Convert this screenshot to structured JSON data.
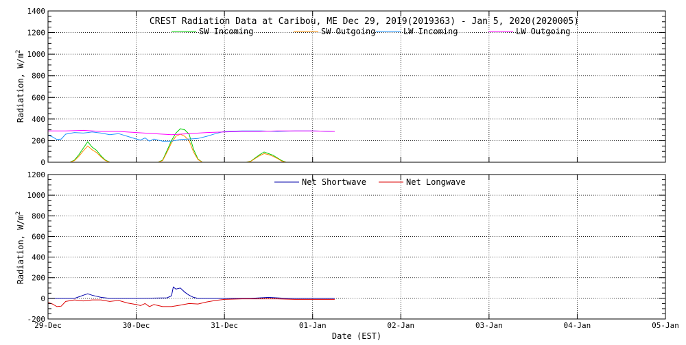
{
  "chart_data": [
    {
      "type": "line",
      "title": "CREST Radiation Data at Caribou, ME   Dec 29, 2019(2019363) - Jan  5, 2020(2020005)",
      "xlabel": "",
      "ylabel": "Radiation, W/m^2",
      "ylim": [
        0,
        1400
      ],
      "yticks": [
        0,
        200,
        400,
        600,
        800,
        1000,
        1200,
        1400
      ],
      "xlim": [
        0,
        7
      ],
      "grid": true,
      "legend": "top",
      "series": [
        {
          "name": "SW Incoming",
          "color": "#00cc00",
          "x": [
            0,
            0.25,
            0.3,
            0.35,
            0.4,
            0.45,
            0.5,
            0.55,
            0.6,
            0.65,
            0.7,
            0.75,
            1.0,
            1.25,
            1.3,
            1.35,
            1.4,
            1.45,
            1.5,
            1.55,
            1.6,
            1.65,
            1.7,
            1.75,
            2.0,
            2.25,
            2.3,
            2.35,
            2.4,
            2.45,
            2.5,
            2.55,
            2.6,
            2.65,
            2.7,
            2.75,
            3.0,
            3.25
          ],
          "y": [
            0,
            0,
            20,
            70,
            130,
            190,
            140,
            110,
            60,
            20,
            0,
            0,
            0,
            0,
            20,
            110,
            200,
            270,
            310,
            300,
            260,
            120,
            30,
            0,
            0,
            0,
            10,
            40,
            70,
            95,
            80,
            65,
            40,
            15,
            0,
            0,
            0,
            0
          ]
        },
        {
          "name": "SW Outgoing",
          "color": "#ff8c00",
          "x": [
            0,
            0.25,
            0.3,
            0.35,
            0.4,
            0.45,
            0.5,
            0.55,
            0.6,
            0.65,
            0.7,
            0.75,
            1.0,
            1.25,
            1.3,
            1.35,
            1.4,
            1.45,
            1.5,
            1.55,
            1.6,
            1.65,
            1.7,
            1.75,
            2.0,
            2.25,
            2.3,
            2.35,
            2.4,
            2.45,
            2.5,
            2.55,
            2.6,
            2.65,
            2.7,
            2.75,
            3.0,
            3.25
          ],
          "y": [
            0,
            0,
            15,
            55,
            105,
            150,
            115,
            90,
            50,
            15,
            0,
            0,
            0,
            0,
            15,
            95,
            180,
            240,
            260,
            240,
            200,
            95,
            25,
            0,
            0,
            0,
            8,
            35,
            60,
            80,
            70,
            55,
            35,
            10,
            0,
            0,
            0,
            0
          ]
        },
        {
          "name": "LW Incoming",
          "color": "#1e90ff",
          "x": [
            0,
            0.05,
            0.1,
            0.15,
            0.2,
            0.3,
            0.4,
            0.5,
            0.6,
            0.7,
            0.8,
            0.9,
            1.0,
            1.05,
            1.1,
            1.15,
            1.2,
            1.3,
            1.4,
            1.5,
            1.6,
            1.7,
            1.8,
            1.9,
            2.0,
            2.2,
            2.4,
            2.6,
            2.8,
            3.0,
            3.25
          ],
          "y": [
            250,
            235,
            210,
            215,
            260,
            275,
            270,
            280,
            270,
            255,
            265,
            240,
            215,
            205,
            225,
            195,
            215,
            195,
            195,
            210,
            215,
            220,
            240,
            265,
            285,
            290,
            290,
            285,
            290,
            290,
            285
          ]
        },
        {
          "name": "LW Outgoing",
          "color": "#ff00ff",
          "x": [
            0,
            0.2,
            0.4,
            0.6,
            0.8,
            1.0,
            1.2,
            1.4,
            1.6,
            1.8,
            2.0,
            2.2,
            2.4,
            2.6,
            2.8,
            3.0,
            3.25
          ],
          "y": [
            290,
            290,
            295,
            285,
            285,
            275,
            265,
            255,
            265,
            275,
            280,
            285,
            285,
            290,
            290,
            290,
            285
          ]
        }
      ]
    },
    {
      "type": "line",
      "xlabel": "Date (EST)",
      "ylabel": "Radiation, W/m^2",
      "ylim": [
        -200,
        1200
      ],
      "yticks": [
        -200,
        0,
        200,
        400,
        600,
        800,
        1000,
        1200
      ],
      "xlim": [
        0,
        7
      ],
      "categories": [
        "29-Dec",
        "30-Dec",
        "31-Dec",
        "01-Jan",
        "02-Jan",
        "03-Jan",
        "04-Jan",
        "05-Jan"
      ],
      "grid": true,
      "legend": "top",
      "series": [
        {
          "name": "Net Shortwave",
          "color": "#0000aa",
          "x": [
            0,
            0.3,
            0.35,
            0.4,
            0.45,
            0.5,
            0.55,
            0.6,
            0.65,
            0.7,
            0.75,
            1.0,
            1.35,
            1.4,
            1.42,
            1.45,
            1.5,
            1.55,
            1.6,
            1.65,
            1.7,
            1.75,
            2.0,
            2.3,
            2.4,
            2.5,
            2.6,
            2.7,
            2.75,
            3.0,
            3.25
          ],
          "y": [
            0,
            0,
            15,
            30,
            45,
            30,
            20,
            10,
            5,
            0,
            0,
            0,
            5,
            25,
            110,
            90,
            100,
            60,
            30,
            10,
            0,
            0,
            0,
            0,
            5,
            10,
            5,
            0,
            0,
            0,
            0
          ]
        },
        {
          "name": "Net Longwave",
          "color": "#dd0000",
          "x": [
            0,
            0.05,
            0.1,
            0.15,
            0.2,
            0.3,
            0.4,
            0.5,
            0.6,
            0.7,
            0.8,
            0.9,
            1.0,
            1.05,
            1.1,
            1.15,
            1.2,
            1.3,
            1.4,
            1.5,
            1.6,
            1.7,
            1.8,
            1.9,
            2.0,
            2.2,
            2.4,
            2.6,
            2.8,
            3.0,
            3.25
          ],
          "y": [
            -40,
            -55,
            -80,
            -75,
            -30,
            -15,
            -25,
            -15,
            -15,
            -30,
            -20,
            -45,
            -60,
            -70,
            -50,
            -80,
            -60,
            -80,
            -80,
            -65,
            -50,
            -55,
            -35,
            -20,
            -10,
            -5,
            -5,
            -5,
            -10,
            -10,
            -10
          ]
        }
      ]
    }
  ]
}
